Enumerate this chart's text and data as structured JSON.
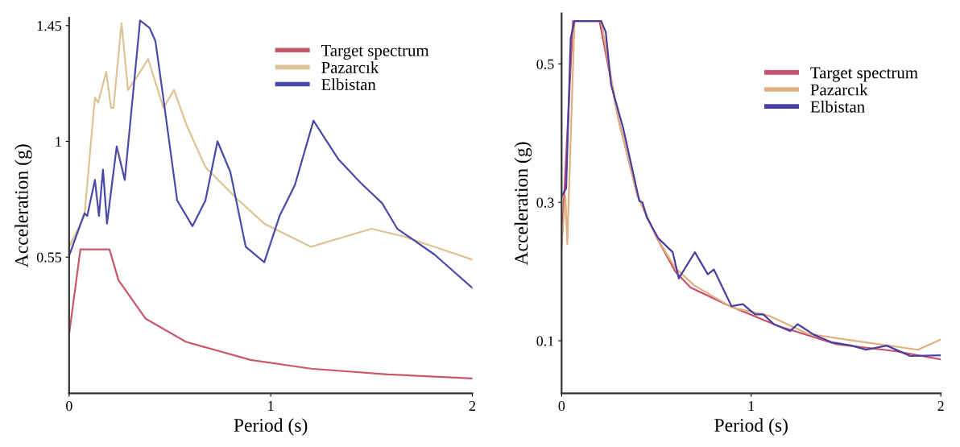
{
  "chart_data": [
    {
      "type": "line",
      "xlabel": "Period (s)",
      "ylabel": "Acceleration (g)",
      "xlim": [
        0,
        2
      ],
      "ylim": [
        0.02,
        1.48
      ],
      "xticks": [
        0,
        1,
        2
      ],
      "yticks": [
        0.55,
        1,
        1.45
      ],
      "grid": false,
      "legend": "top right",
      "line_style": "solid",
      "marker": "none",
      "series": [
        {
          "name": "Target spectrum",
          "color": "#c8596a",
          "x": [
            0,
            0.056,
            0.2,
            0.245,
            0.38,
            0.58,
            0.9,
            1.2,
            1.58,
            2.0
          ],
          "values": [
            0.25,
            0.58,
            0.58,
            0.46,
            0.31,
            0.22,
            0.15,
            0.116,
            0.094,
            0.078
          ]
        },
        {
          "name": "Pazarcık",
          "color": "#dcc495",
          "x": [
            0,
            0.076,
            0.128,
            0.144,
            0.184,
            0.208,
            0.22,
            0.26,
            0.292,
            0.336,
            0.392,
            0.468,
            0.52,
            0.584,
            0.676,
            0.828,
            0.968,
            1.2,
            1.5,
            1.66,
            2.0
          ],
          "values": [
            0.59,
            0.71,
            1.17,
            1.15,
            1.27,
            1.13,
            1.13,
            1.46,
            1.2,
            1.25,
            1.32,
            1.13,
            1.2,
            1.06,
            0.9,
            0.78,
            0.68,
            0.59,
            0.66,
            0.63,
            0.54
          ]
        },
        {
          "name": "Elbistan",
          "color": "#4a4aa8",
          "x": [
            0,
            0.076,
            0.09,
            0.128,
            0.148,
            0.168,
            0.188,
            0.236,
            0.276,
            0.352,
            0.4,
            0.428,
            0.46,
            0.536,
            0.612,
            0.676,
            0.736,
            0.8,
            0.876,
            0.968,
            1.044,
            1.12,
            1.212,
            1.336,
            1.444,
            1.552,
            1.628,
            1.812,
            2.0
          ],
          "values": [
            0.555,
            0.72,
            0.71,
            0.85,
            0.71,
            0.89,
            0.68,
            0.98,
            0.85,
            1.47,
            1.44,
            1.39,
            1.21,
            0.77,
            0.67,
            0.77,
            1.0,
            0.88,
            0.59,
            0.53,
            0.71,
            0.83,
            1.08,
            0.93,
            0.84,
            0.76,
            0.66,
            0.56,
            0.43
          ]
        }
      ]
    },
    {
      "type": "line",
      "xlabel": "Period (s)",
      "ylabel": "Acceleration (g)",
      "xlim": [
        0,
        2
      ],
      "ylim": [
        0.024,
        0.573
      ],
      "xticks": [
        0,
        1,
        2
      ],
      "yticks": [
        0.1,
        0.3,
        0.5
      ],
      "grid": false,
      "legend": "top right",
      "line_style": "solid",
      "marker": "none",
      "series": [
        {
          "name": "Target spectrum",
          "color": "#c8506a",
          "x": [
            0,
            0.06,
            0.2,
            0.3,
            0.4,
            0.5,
            0.6,
            0.68,
            0.88,
            1.145,
            1.45,
            1.76,
            2.0
          ],
          "values": [
            0.237,
            0.562,
            0.562,
            0.42,
            0.31,
            0.25,
            0.2,
            0.177,
            0.151,
            0.121,
            0.095,
            0.085,
            0.073
          ]
        },
        {
          "name": "Pazarcık",
          "color": "#e0b080",
          "x": [
            0,
            0.02,
            0.03,
            0.068,
            0.209,
            0.3,
            0.4,
            0.5,
            0.6,
            0.7,
            0.9,
            1.096,
            1.3,
            1.546,
            1.88,
            2.0
          ],
          "values": [
            0.24,
            0.309,
            0.24,
            0.562,
            0.562,
            0.42,
            0.31,
            0.25,
            0.205,
            0.18,
            0.148,
            0.136,
            0.11,
            0.1,
            0.087,
            0.102
          ]
        },
        {
          "name": "Elbistan",
          "color": "#4a3fa0",
          "x": [
            0,
            0.024,
            0.048,
            0.068,
            0.209,
            0.233,
            0.261,
            0.325,
            0.41,
            0.426,
            0.45,
            0.462,
            0.51,
            0.586,
            0.618,
            0.703,
            0.771,
            0.803,
            0.896,
            0.956,
            1.02,
            1.064,
            1.12,
            1.205,
            1.245,
            1.329,
            1.422,
            1.53,
            1.606,
            1.715,
            1.839,
            2.0
          ],
          "values": [
            0.309,
            0.32,
            0.537,
            0.562,
            0.562,
            0.546,
            0.47,
            0.407,
            0.302,
            0.3,
            0.278,
            0.272,
            0.248,
            0.228,
            0.19,
            0.228,
            0.196,
            0.203,
            0.15,
            0.153,
            0.138,
            0.138,
            0.124,
            0.114,
            0.124,
            0.109,
            0.098,
            0.093,
            0.087,
            0.093,
            0.078,
            0.079
          ]
        }
      ]
    }
  ]
}
